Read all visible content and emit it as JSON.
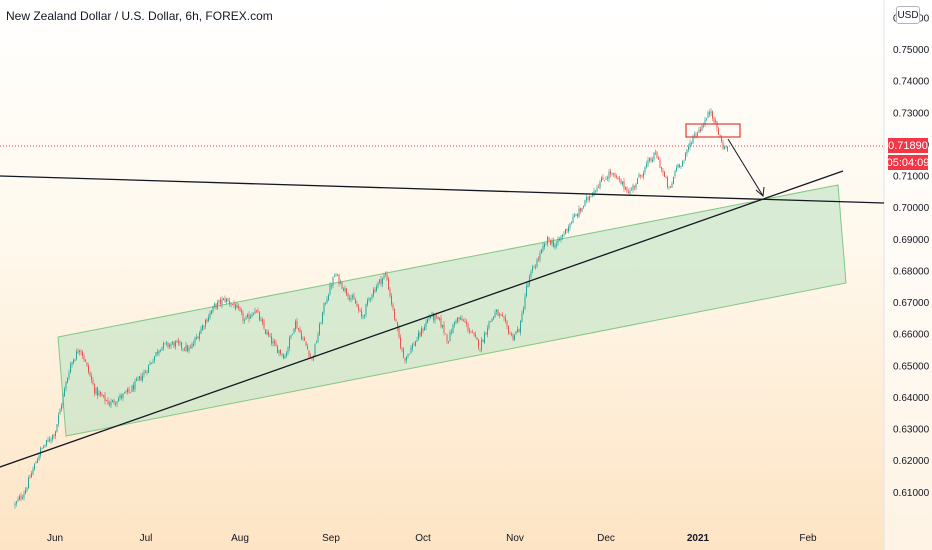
{
  "header": {
    "title": "New Zealand Dollar / U.S. Dollar, 6h, FOREX.com",
    "currency": "USD"
  },
  "chart_data": {
    "type": "candlestick",
    "title": "New Zealand Dollar / U.S. Dollar, 6h, FOREX.com",
    "ylim": [
      0.6025,
      0.7625
    ],
    "y_ticks": [
      "0.61000",
      "0.62000",
      "0.63000",
      "0.64000",
      "0.65000",
      "0.66000",
      "0.67000",
      "0.68000",
      "0.69000",
      "0.70000",
      "0.71000",
      "0.72000",
      "0.73000",
      "0.74000",
      "0.75000",
      "0.76000"
    ],
    "x_ticks": [
      {
        "label": "Jun",
        "x": 55
      },
      {
        "label": "Jul",
        "x": 146
      },
      {
        "label": "Aug",
        "x": 240
      },
      {
        "label": "Sep",
        "x": 331
      },
      {
        "label": "Oct",
        "x": 423
      },
      {
        "label": "Nov",
        "x": 515
      },
      {
        "label": "Dec",
        "x": 606
      },
      {
        "label": "2021",
        "x": 698,
        "bold": true
      },
      {
        "label": "Feb",
        "x": 808
      }
    ],
    "last_price": "0.71890",
    "countdown": "05:04:09",
    "colors": {
      "up": "#26a69a",
      "down": "#ef5350",
      "channel_fill": "#c8e6c9",
      "channel_stroke": "#81c784",
      "trendline": "#131722",
      "price_line": "#f23645"
    },
    "path": [
      [
        15,
        0.606
      ],
      [
        25,
        0.6105
      ],
      [
        40,
        0.623
      ],
      [
        55,
        0.629
      ],
      [
        70,
        0.65
      ],
      [
        80,
        0.656
      ],
      [
        95,
        0.642
      ],
      [
        110,
        0.638
      ],
      [
        130,
        0.642
      ],
      [
        145,
        0.648
      ],
      [
        160,
        0.656
      ],
      [
        175,
        0.657
      ],
      [
        190,
        0.655
      ],
      [
        205,
        0.664
      ],
      [
        215,
        0.669
      ],
      [
        225,
        0.671
      ],
      [
        235,
        0.669
      ],
      [
        245,
        0.664
      ],
      [
        255,
        0.668
      ],
      [
        265,
        0.661
      ],
      [
        275,
        0.656
      ],
      [
        285,
        0.653
      ],
      [
        295,
        0.664
      ],
      [
        305,
        0.657
      ],
      [
        312,
        0.652
      ],
      [
        318,
        0.66
      ],
      [
        325,
        0.67
      ],
      [
        335,
        0.679
      ],
      [
        345,
        0.674
      ],
      [
        355,
        0.67
      ],
      [
        362,
        0.665
      ],
      [
        370,
        0.672
      ],
      [
        378,
        0.676
      ],
      [
        386,
        0.679
      ],
      [
        392,
        0.669
      ],
      [
        398,
        0.66
      ],
      [
        404,
        0.652
      ],
      [
        412,
        0.656
      ],
      [
        420,
        0.66
      ],
      [
        430,
        0.666
      ],
      [
        440,
        0.664
      ],
      [
        448,
        0.658
      ],
      [
        456,
        0.665
      ],
      [
        464,
        0.664
      ],
      [
        472,
        0.66
      ],
      [
        480,
        0.656
      ],
      [
        488,
        0.663
      ],
      [
        496,
        0.667
      ],
      [
        504,
        0.664
      ],
      [
        512,
        0.659
      ],
      [
        520,
        0.662
      ],
      [
        526,
        0.674
      ],
      [
        532,
        0.68
      ],
      [
        540,
        0.685
      ],
      [
        548,
        0.69
      ],
      [
        556,
        0.688
      ],
      [
        564,
        0.692
      ],
      [
        572,
        0.696
      ],
      [
        580,
        0.699
      ],
      [
        590,
        0.704
      ],
      [
        600,
        0.708
      ],
      [
        610,
        0.711
      ],
      [
        620,
        0.708
      ],
      [
        630,
        0.705
      ],
      [
        640,
        0.71
      ],
      [
        648,
        0.714
      ],
      [
        656,
        0.717
      ],
      [
        664,
        0.71
      ],
      [
        670,
        0.705
      ],
      [
        676,
        0.713
      ],
      [
        684,
        0.715
      ],
      [
        692,
        0.722
      ],
      [
        700,
        0.725
      ],
      [
        706,
        0.728
      ],
      [
        711,
        0.731
      ],
      [
        716,
        0.726
      ],
      [
        722,
        0.72
      ],
      [
        728,
        0.718
      ]
    ]
  }
}
